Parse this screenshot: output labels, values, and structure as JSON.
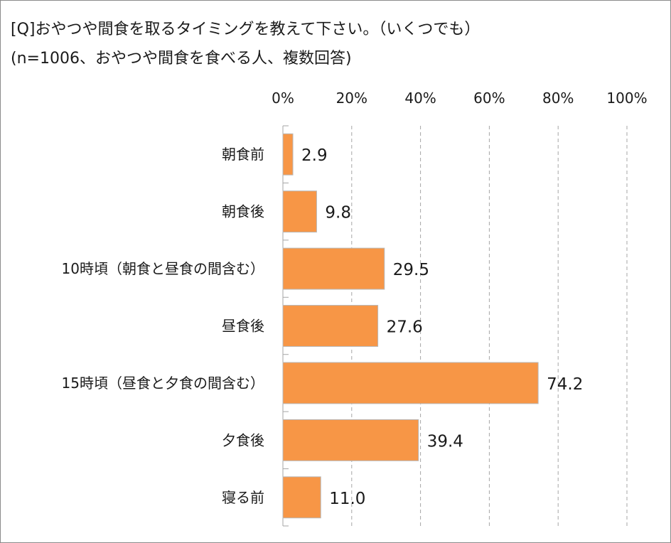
{
  "title": "[Q]おやつや間食を取るタイミングを教えて下さい。（いくつでも）",
  "subtitle": "(n=1006、おやつや間食を食べる人、複数回答)",
  "colors": {
    "bar_fill": "#f79646",
    "bar_stroke": "#b8b8b8",
    "grid": "#a6a6a6",
    "axis": "#a6a6a6"
  },
  "chart_data": {
    "type": "bar",
    "orientation": "horizontal",
    "categories": [
      "朝食前",
      "朝食後",
      "10時頃（朝食と昼食の間含む）",
      "昼食後",
      "15時頃（昼食と夕食の間含む）",
      "夕食後",
      "寝る前"
    ],
    "values": [
      2.9,
      9.8,
      29.5,
      27.6,
      74.2,
      39.4,
      11.0
    ],
    "value_labels": [
      "2.9",
      "9.8",
      "29.5",
      "27.6",
      "74.2",
      "39.4",
      "11.0"
    ],
    "xlim": [
      0,
      100
    ],
    "xticks": [
      0,
      20,
      40,
      60,
      80,
      100
    ],
    "xtick_labels": [
      "0%",
      "20%",
      "40%",
      "60%",
      "80%",
      "100%"
    ],
    "axis_position": "top",
    "grid": true,
    "grid_style": "dashed",
    "legend": false
  }
}
